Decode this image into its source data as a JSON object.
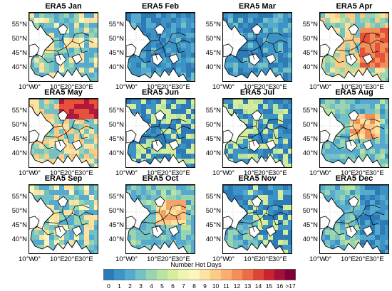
{
  "panels": [
    {
      "title": "ERA5 Jan",
      "pattern": "mixed",
      "hot": []
    },
    {
      "title": "ERA5 Feb",
      "pattern": "cold",
      "hot": []
    },
    {
      "title": "ERA5 Mar",
      "pattern": "cold",
      "hot": []
    },
    {
      "title": "ERA5 Apr",
      "pattern": "warm-east",
      "hot": [
        "#e8503a",
        "#f08f58"
      ]
    },
    {
      "title": "ERA5 May",
      "pattern": "warm-north",
      "hot": [
        "#b2183c",
        "#e8503a"
      ]
    },
    {
      "title": "ERA5 Jun",
      "pattern": "mixed-cool",
      "hot": []
    },
    {
      "title": "ERA5 Jul",
      "pattern": "mixed-cool",
      "hot": []
    },
    {
      "title": "ERA5 Aug",
      "pattern": "warm-central",
      "hot": [
        "#f08f58"
      ]
    },
    {
      "title": "ERA5 Sep",
      "pattern": "mixed",
      "hot": []
    },
    {
      "title": "ERA5 Oct",
      "pattern": "warm-central",
      "hot": [
        "#f4a466"
      ]
    },
    {
      "title": "ERA5 Nov",
      "pattern": "cold-mixed",
      "hot": []
    },
    {
      "title": "ERA5 Dec",
      "pattern": "cold-east",
      "hot": []
    }
  ],
  "lat_labels": [
    "55°N",
    "50°N",
    "45°N",
    "40°N"
  ],
  "lon_labels": [
    "10°W",
    "0°",
    "10°E",
    "20°E",
    "30°E"
  ],
  "colorbar": {
    "title": "Number Hot Days",
    "ticks": [
      "0",
      "1",
      "2",
      "3",
      "4",
      "5",
      "6",
      "7",
      "8",
      "9",
      "10",
      "11",
      "12",
      "13",
      "14",
      "15",
      "16",
      ">17"
    ],
    "colors": [
      "#2c7bb6",
      "#3c93c6",
      "#55aad0",
      "#74c2c4",
      "#98d5b0",
      "#b9e3a0",
      "#d6ee9b",
      "#eef5ae",
      "#fbf6bc",
      "#fde3a0",
      "#fdcb86",
      "#fbae70",
      "#f58f59",
      "#ec6c46",
      "#dd4536",
      "#c92332",
      "#a50f3a",
      "#7f0038"
    ]
  },
  "chart_data": {
    "type": "heatmap",
    "title": "",
    "colorbar_label": "Number Hot Days",
    "colorbar_range": [
      0,
      17
    ],
    "panels": [
      "ERA5 Jan",
      "ERA5 Feb",
      "ERA5 Mar",
      "ERA5 Apr",
      "ERA5 May",
      "ERA5 Jun",
      "ERA5 Jul",
      "ERA5 Aug",
      "ERA5 Sep",
      "ERA5 Oct",
      "ERA5 Nov",
      "ERA5 Dec"
    ],
    "lat_ticks": [
      "55°N",
      "50°N",
      "45°N",
      "40°N"
    ],
    "lon_ticks": [
      "10°W",
      "0°",
      "10°E",
      "20°E",
      "30°E"
    ],
    "grid": true
  }
}
